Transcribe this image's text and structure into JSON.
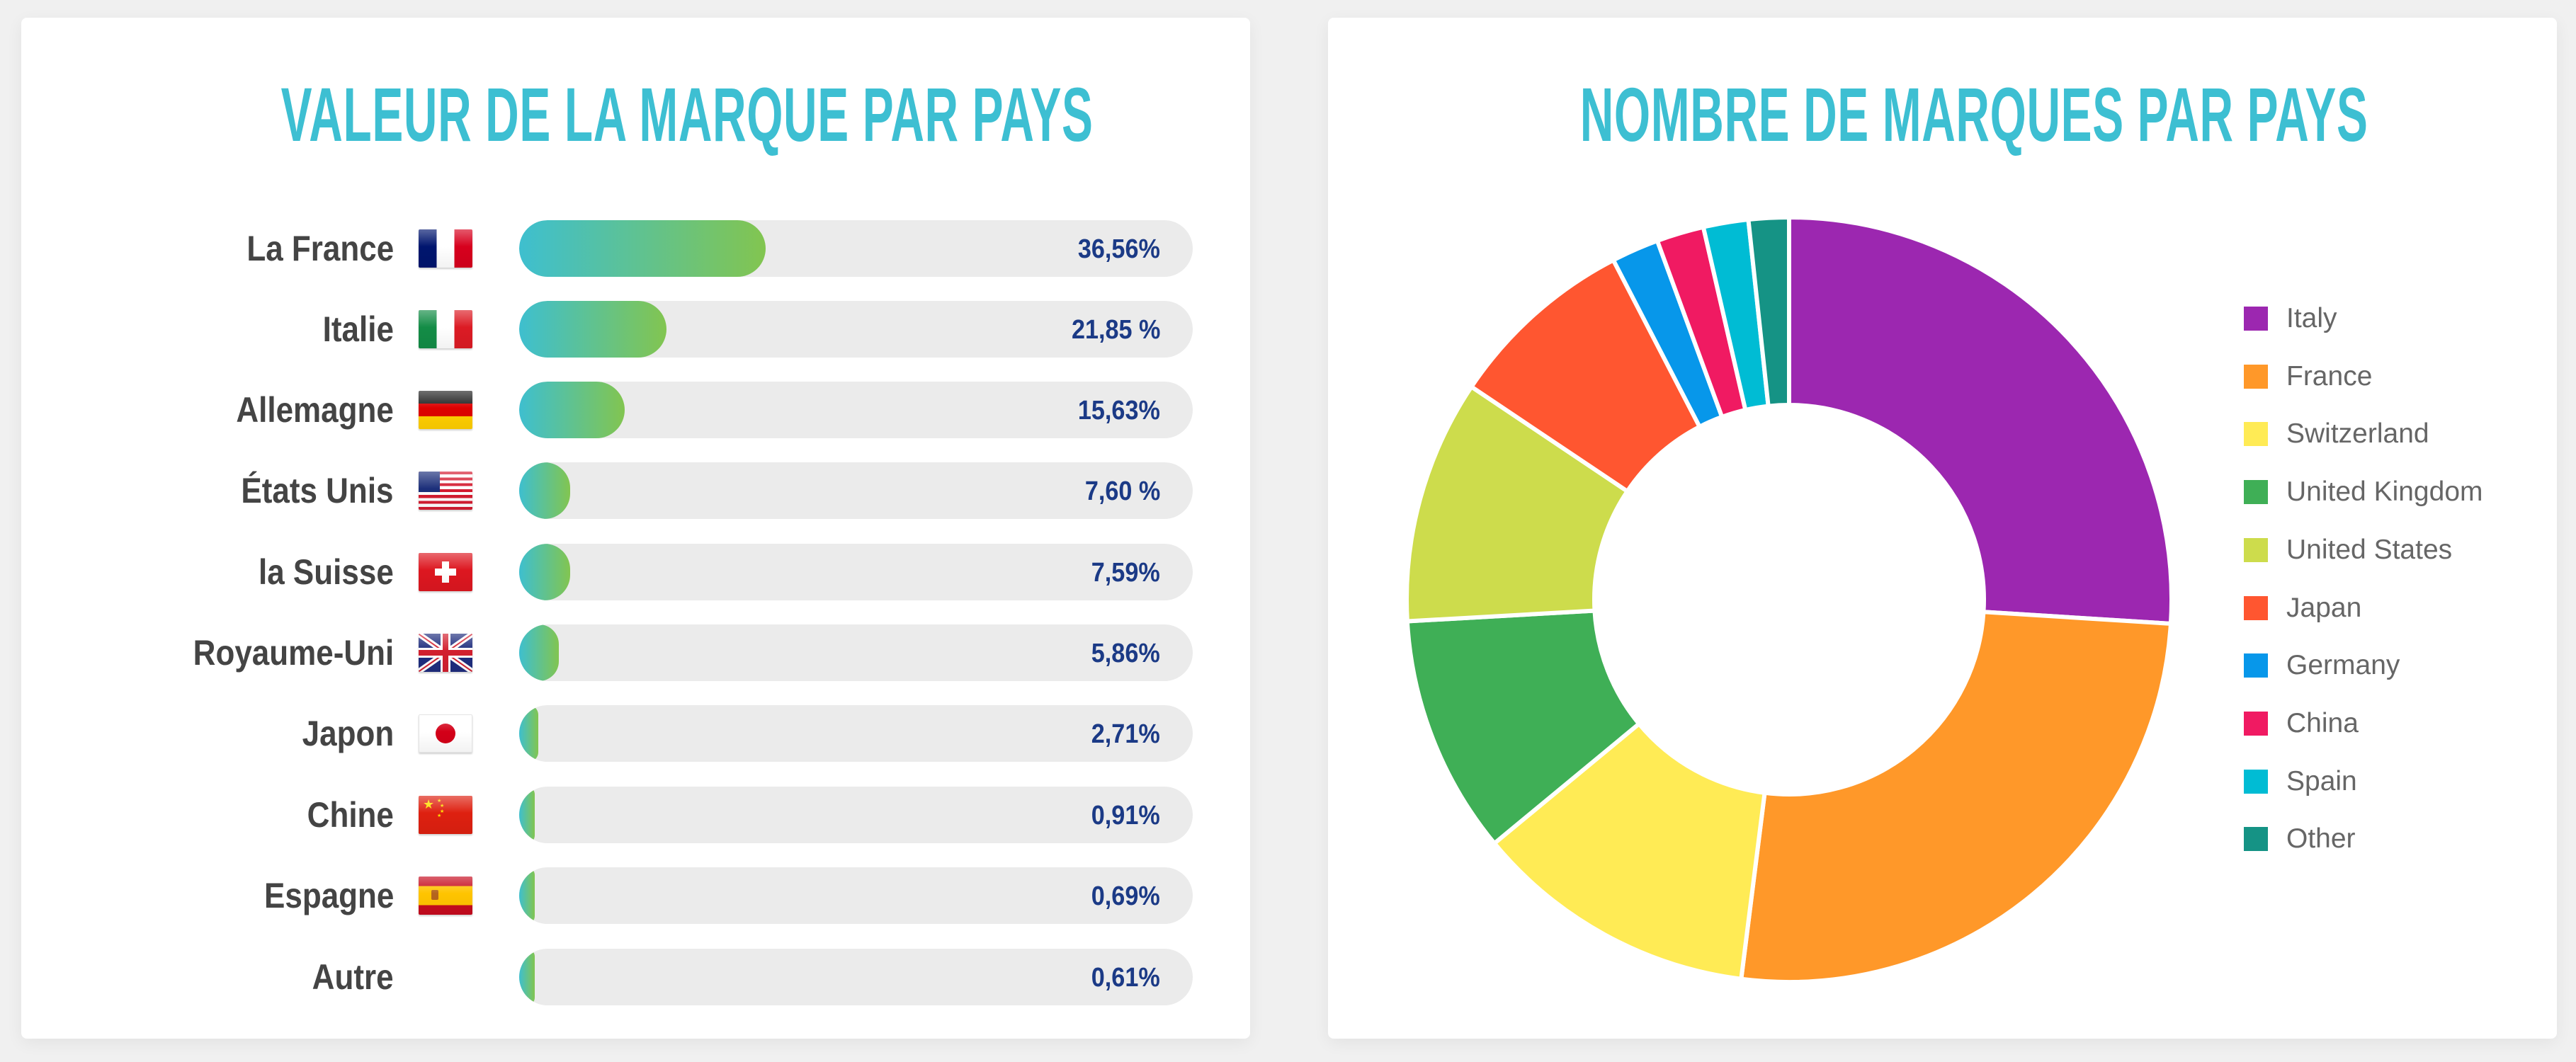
{
  "left_panel": {
    "title": "VALEUR DE LA MARQUE PAR PAYS",
    "bar_gradient": [
      "#3ebfcf",
      "#82c550"
    ],
    "track_color": "#ebebeb",
    "rows": [
      {
        "label": "La France",
        "flag": "france-flag",
        "value_text": "36,56%",
        "value": 36.56
      },
      {
        "label": "Italie",
        "flag": "italy-flag",
        "value_text": "21,85 %",
        "value": 21.85
      },
      {
        "label": "Allemagne",
        "flag": "germany-flag",
        "value_text": "15,63%",
        "value": 15.63
      },
      {
        "label": "États Unis",
        "flag": "united-states-flag",
        "value_text": "7,60 %",
        "value": 7.6
      },
      {
        "label": "la Suisse",
        "flag": "switzerland-flag",
        "value_text": "7,59%",
        "value": 7.59
      },
      {
        "label": "Royaume-Uni",
        "flag": "united-kingdom-flag",
        "value_text": "5,86%",
        "value": 5.86
      },
      {
        "label": "Japon",
        "flag": "japan-flag",
        "value_text": "2,71%",
        "value": 2.71
      },
      {
        "label": "Chine",
        "flag": "china-flag",
        "value_text": "0,91%",
        "value": 0.91
      },
      {
        "label": "Espagne",
        "flag": "spain-flag",
        "value_text": "0,69%",
        "value": 0.69
      },
      {
        "label": "Autre",
        "flag": null,
        "value_text": "0,61%",
        "value": 0.61
      }
    ]
  },
  "right_panel": {
    "title": "NOMBRE DE MARQUES PAR PAYS",
    "legend": [
      {
        "label": "Italy",
        "color": "#9c27b0"
      },
      {
        "label": "France",
        "color": "#ff9829"
      },
      {
        "label": "Switzerland",
        "color": "#ffeb55"
      },
      {
        "label": "United Kingdom",
        "color": "#3faf56"
      },
      {
        "label": "United States",
        "color": "#cddc4c"
      },
      {
        "label": "Japan",
        "color": "#ff5630"
      },
      {
        "label": "Germany",
        "color": "#0797ea"
      },
      {
        "label": "China",
        "color": "#f01a62"
      },
      {
        "label": "Spain",
        "color": "#00bcd4"
      },
      {
        "label": "Other",
        "color": "#159385"
      }
    ]
  },
  "chart_data": [
    {
      "type": "bar",
      "orientation": "horizontal",
      "title": "VALEUR DE LA MARQUE PAR PAYS",
      "categories": [
        "La France",
        "Italie",
        "Allemagne",
        "États Unis",
        "la Suisse",
        "Royaume-Uni",
        "Japon",
        "Chine",
        "Espagne",
        "Autre"
      ],
      "values": [
        36.56,
        21.85,
        15.63,
        7.6,
        7.59,
        5.86,
        2.71,
        0.91,
        0.69,
        0.61
      ],
      "value_labels": [
        "36,56%",
        "21,85 %",
        "15,63%",
        "7,60 %",
        "7,59%",
        "5,86%",
        "2,71%",
        "0,91%",
        "0,69%",
        "0,61%"
      ],
      "unit": "%",
      "xlim": [
        0,
        100
      ],
      "xlabel": "",
      "ylabel": "",
      "grid": false,
      "legend": null
    },
    {
      "type": "pie",
      "variant": "donut",
      "title": "NOMBRE DE MARQUES PAR PAYS",
      "categories": [
        "Italy",
        "France",
        "Switzerland",
        "United Kingdom",
        "United States",
        "Japan",
        "Germany",
        "China",
        "Spain",
        "Other"
      ],
      "values": [
        26.0,
        26.0,
        12.0,
        10.1,
        10.3,
        8.0,
        2.0,
        2.0,
        1.9,
        1.7
      ],
      "value_unit": "approx % of total (estimated from slice angles, not labeled)",
      "colors": [
        "#9c27b0",
        "#ff9829",
        "#ffeb55",
        "#3faf56",
        "#cddc4c",
        "#ff5630",
        "#0797ea",
        "#f01a62",
        "#00bcd4",
        "#159385"
      ],
      "start_angle": "top, clockwise",
      "legend_position": "right"
    }
  ]
}
